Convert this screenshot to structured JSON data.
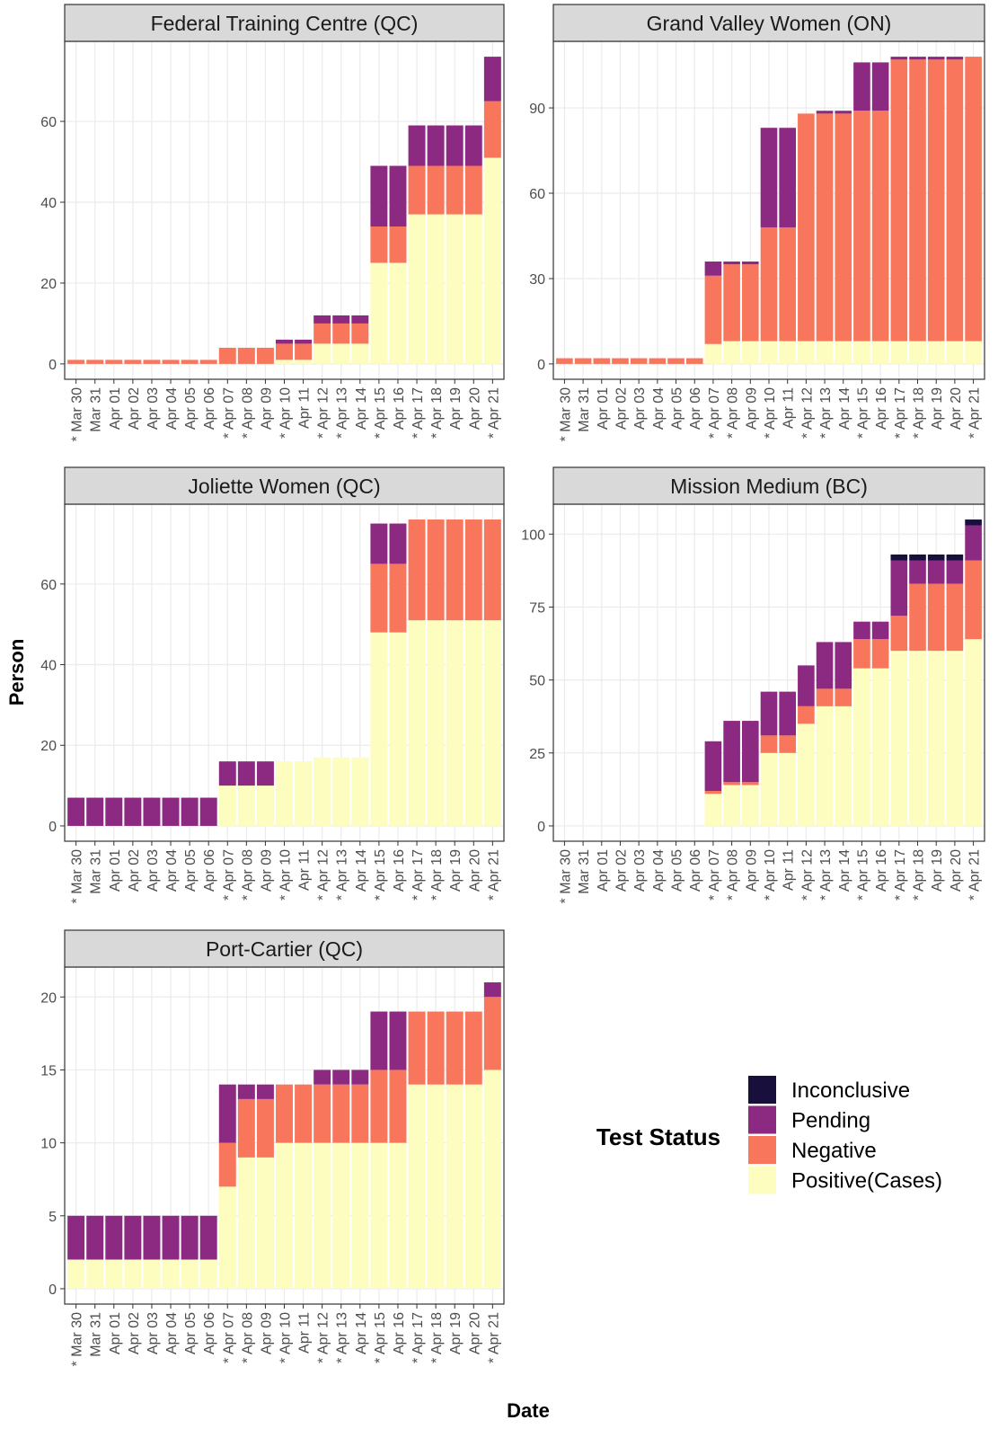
{
  "x_label": "Date",
  "y_label": "Person",
  "legend": {
    "title": "Test Status",
    "entries": [
      {
        "name": "Inconclusive",
        "color": "#180f3d"
      },
      {
        "name": "Pending",
        "color": "#8c2a82"
      },
      {
        "name": "Negative",
        "color": "#f8765c"
      },
      {
        "name": "Positive(Cases)",
        "color": "#fcfdbf"
      }
    ]
  },
  "chart_data": [
    {
      "type": "bar",
      "stacked": true,
      "title": "Federal Training Centre (QC)",
      "categories": [
        "* Mar 30",
        "Mar 31",
        "Apr 01",
        "Apr 02",
        "Apr 03",
        "Apr 04",
        "Apr 05",
        "Apr 06",
        "* Apr 07",
        "* Apr 08",
        "Apr 09",
        "* Apr 10",
        "Apr 11",
        "* Apr 12",
        "* Apr 13",
        "Apr 14",
        "* Apr 15",
        "Apr 16",
        "* Apr 17",
        "* Apr 18",
        "Apr 19",
        "Apr 20",
        "* Apr 21"
      ],
      "series": [
        {
          "values": [
            0,
            0,
            0,
            0,
            0,
            0,
            0,
            0,
            0,
            0,
            0,
            0,
            0,
            0,
            0,
            0,
            0,
            0,
            0,
            0,
            0,
            0,
            0
          ]
        },
        {
          "values": [
            0,
            0,
            0,
            0,
            0,
            0,
            0,
            0,
            0,
            0,
            0,
            1,
            1,
            2,
            2,
            2,
            15,
            15,
            10,
            10,
            10,
            10,
            11
          ]
        },
        {
          "values": [
            1,
            1,
            1,
            1,
            1,
            1,
            1,
            1,
            4,
            4,
            4,
            4,
            4,
            5,
            5,
            5,
            9,
            9,
            12,
            12,
            12,
            12,
            14
          ]
        },
        {
          "values": [
            0,
            0,
            0,
            0,
            0,
            0,
            0,
            0,
            0,
            0,
            0,
            1,
            1,
            5,
            5,
            5,
            25,
            25,
            37,
            37,
            37,
            37,
            51
          ]
        }
      ],
      "ylim": [
        -3.8,
        79.8
      ],
      "yticks": [
        0,
        20,
        40,
        60
      ],
      "grid": true
    },
    {
      "type": "bar",
      "stacked": true,
      "title": "Grand Valley Women (ON)",
      "categories": [
        "* Mar 30",
        "Mar 31",
        "Apr 01",
        "Apr 02",
        "Apr 03",
        "Apr 04",
        "Apr 05",
        "Apr 06",
        "* Apr 07",
        "* Apr 08",
        "Apr 09",
        "* Apr 10",
        "Apr 11",
        "* Apr 12",
        "* Apr 13",
        "Apr 14",
        "* Apr 15",
        "Apr 16",
        "* Apr 17",
        "* Apr 18",
        "Apr 19",
        "Apr 20",
        "* Apr 21"
      ],
      "series": [
        {
          "values": [
            0,
            0,
            0,
            0,
            0,
            0,
            0,
            0,
            0,
            0,
            0,
            0,
            0,
            0,
            0,
            0,
            0,
            0,
            0,
            0,
            0,
            0,
            0
          ]
        },
        {
          "values": [
            0,
            0,
            0,
            0,
            0,
            0,
            0,
            0,
            5,
            1,
            1,
            35,
            35,
            0,
            1,
            1,
            17,
            17,
            1,
            1,
            1,
            1,
            0
          ]
        },
        {
          "values": [
            2,
            2,
            2,
            2,
            2,
            2,
            2,
            2,
            24,
            27,
            27,
            40,
            40,
            80,
            80,
            80,
            81,
            81,
            99,
            99,
            99,
            99,
            100
          ]
        },
        {
          "values": [
            0,
            0,
            0,
            0,
            0,
            0,
            0,
            0,
            7,
            8,
            8,
            8,
            8,
            8,
            8,
            8,
            8,
            8,
            8,
            8,
            8,
            8,
            8
          ]
        }
      ],
      "ylim": [
        -5.4,
        113.4
      ],
      "yticks": [
        0,
        30,
        60,
        90
      ],
      "grid": true
    },
    {
      "type": "bar",
      "stacked": true,
      "title": "Joliette Women (QC)",
      "categories": [
        "* Mar 30",
        "Mar 31",
        "Apr 01",
        "Apr 02",
        "Apr 03",
        "Apr 04",
        "Apr 05",
        "Apr 06",
        "* Apr 07",
        "* Apr 08",
        "Apr 09",
        "* Apr 10",
        "Apr 11",
        "* Apr 12",
        "* Apr 13",
        "Apr 14",
        "* Apr 15",
        "Apr 16",
        "* Apr 17",
        "* Apr 18",
        "Apr 19",
        "Apr 20",
        "* Apr 21"
      ],
      "series": [
        {
          "values": [
            0,
            0,
            0,
            0,
            0,
            0,
            0,
            0,
            0,
            0,
            0,
            0,
            0,
            0,
            0,
            0,
            0,
            0,
            0,
            0,
            0,
            0,
            0
          ]
        },
        {
          "values": [
            7,
            7,
            7,
            7,
            7,
            7,
            7,
            7,
            6,
            6,
            6,
            0,
            0,
            0,
            0,
            0,
            10,
            10,
            0,
            0,
            0,
            0,
            0
          ]
        },
        {
          "values": [
            0,
            0,
            0,
            0,
            0,
            0,
            0,
            0,
            0,
            0,
            0,
            0,
            0,
            0,
            0,
            0,
            17,
            17,
            25,
            25,
            25,
            25,
            25
          ]
        },
        {
          "values": [
            0,
            0,
            0,
            0,
            0,
            0,
            0,
            0,
            10,
            10,
            10,
            16,
            16,
            17,
            17,
            17,
            48,
            48,
            51,
            51,
            51,
            51,
            51
          ]
        }
      ],
      "ylim": [
        -3.8,
        79.8
      ],
      "yticks": [
        0,
        20,
        40,
        60
      ],
      "grid": true
    },
    {
      "type": "bar",
      "stacked": true,
      "title": "Mission Medium (BC)",
      "categories": [
        "* Mar 30",
        "Mar 31",
        "Apr 01",
        "Apr 02",
        "Apr 03",
        "Apr 04",
        "Apr 05",
        "Apr 06",
        "* Apr 07",
        "* Apr 08",
        "Apr 09",
        "* Apr 10",
        "Apr 11",
        "* Apr 12",
        "* Apr 13",
        "Apr 14",
        "* Apr 15",
        "Apr 16",
        "* Apr 17",
        "* Apr 18",
        "Apr 19",
        "Apr 20",
        "* Apr 21"
      ],
      "series": [
        {
          "values": [
            0,
            0,
            0,
            0,
            0,
            0,
            0,
            0,
            0,
            0,
            0,
            0,
            0,
            0,
            0,
            0,
            0,
            0,
            2,
            2,
            2,
            2,
            2
          ]
        },
        {
          "values": [
            0,
            0,
            0,
            0,
            0,
            0,
            0,
            0,
            17,
            21,
            21,
            15,
            15,
            14,
            16,
            16,
            6,
            6,
            19,
            8,
            8,
            8,
            12
          ]
        },
        {
          "values": [
            0,
            0,
            0,
            0,
            0,
            0,
            0,
            0,
            1,
            1,
            1,
            6,
            6,
            6,
            6,
            6,
            10,
            10,
            12,
            23,
            23,
            23,
            27
          ]
        },
        {
          "values": [
            0,
            0,
            0,
            0,
            0,
            0,
            0,
            0,
            11,
            14,
            14,
            25,
            25,
            35,
            41,
            41,
            54,
            54,
            60,
            60,
            60,
            60,
            64
          ]
        }
      ],
      "ylim": [
        -5.25,
        110.25
      ],
      "yticks": [
        0,
        25,
        50,
        75,
        100
      ],
      "grid": true
    },
    {
      "type": "bar",
      "stacked": true,
      "title": "Port-Cartier (QC)",
      "categories": [
        "* Mar 30",
        "Mar 31",
        "Apr 01",
        "Apr 02",
        "Apr 03",
        "Apr 04",
        "Apr 05",
        "Apr 06",
        "* Apr 07",
        "* Apr 08",
        "Apr 09",
        "* Apr 10",
        "Apr 11",
        "* Apr 12",
        "* Apr 13",
        "Apr 14",
        "* Apr 15",
        "Apr 16",
        "* Apr 17",
        "* Apr 18",
        "Apr 19",
        "Apr 20",
        "* Apr 21"
      ],
      "series": [
        {
          "values": [
            0,
            0,
            0,
            0,
            0,
            0,
            0,
            0,
            0,
            0,
            0,
            0,
            0,
            0,
            0,
            0,
            0,
            0,
            0,
            0,
            0,
            0,
            0
          ]
        },
        {
          "values": [
            3,
            3,
            3,
            3,
            3,
            3,
            3,
            3,
            4,
            1,
            1,
            0,
            0,
            1,
            1,
            1,
            4,
            4,
            0,
            0,
            0,
            0,
            1
          ]
        },
        {
          "values": [
            0,
            0,
            0,
            0,
            0,
            0,
            0,
            0,
            3,
            4,
            4,
            4,
            4,
            4,
            4,
            4,
            5,
            5,
            5,
            5,
            5,
            5,
            5
          ]
        },
        {
          "values": [
            2,
            2,
            2,
            2,
            2,
            2,
            2,
            2,
            7,
            9,
            9,
            10,
            10,
            10,
            10,
            10,
            10,
            10,
            14,
            14,
            14,
            14,
            15
          ]
        }
      ],
      "ylim": [
        -1.05,
        22.05
      ],
      "yticks": [
        0,
        5,
        10,
        15,
        20
      ],
      "grid": true
    }
  ]
}
